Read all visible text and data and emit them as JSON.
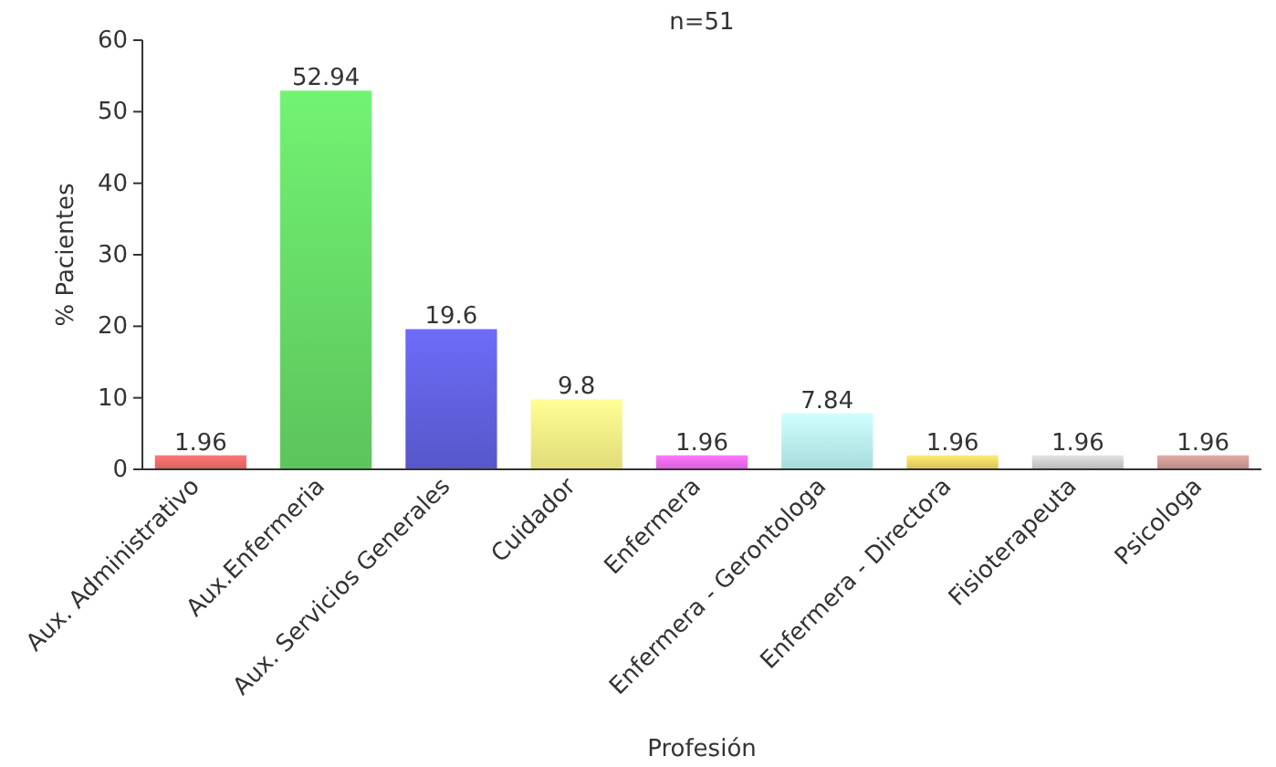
{
  "chart_data": {
    "type": "bar",
    "title": "n=51",
    "xlabel": "Profesión",
    "ylabel": "% Pacientes",
    "categories": [
      "Aux. Administrativo",
      "Aux.Enfermeria",
      "Aux. Servicios Generales",
      "Cuidador",
      "Enfermera",
      "Enfermera - Gerontologa",
      "Enfermera - Directora",
      "Fisioterapeuta",
      "Psicologa"
    ],
    "values": [
      1.96,
      52.94,
      19.6,
      9.8,
      1.96,
      7.84,
      1.96,
      1.96,
      1.96
    ],
    "colors": [
      "#d95f5f",
      "#5cc45c",
      "#5757c9",
      "#e0dc78",
      "#d85fd8",
      "#a8dcdc",
      "#d9bf5a",
      "#b8b8b8",
      "#b98a86"
    ],
    "ylim": [
      0,
      60
    ],
    "yticks": [
      0,
      10,
      20,
      30,
      40,
      50,
      60
    ],
    "data_labels": true,
    "grid": false
  }
}
